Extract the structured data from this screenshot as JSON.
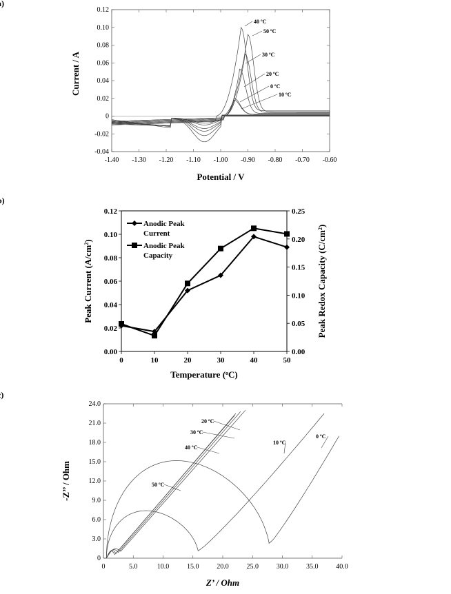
{
  "panels": {
    "a": "a)",
    "b": "b)",
    "c": "c)"
  },
  "chart_data": [
    {
      "type": "line",
      "panel": "a)",
      "xlabel": "Potential / V",
      "ylabel": "Current / A",
      "xlim": [
        -1.4,
        -0.6
      ],
      "ylim": [
        -0.04,
        0.12
      ],
      "xticks": [
        "-1.40",
        "-1.30",
        "-1.20",
        "-1.10",
        "-1.00",
        "-0.90",
        "-0.80",
        "-0.70",
        "-0.60"
      ],
      "yticks": [
        "-0.04",
        "-0.02",
        "0",
        "0.02",
        "0.04",
        "0.06",
        "0.08",
        "0.10",
        "0.12"
      ],
      "annotations": [
        "40 ºC",
        "50 ºC",
        "30 ºC",
        "20 ºC",
        "0 ºC",
        "10 ºC"
      ],
      "series": [
        {
          "label_index": 0,
          "peak_x": -0.925,
          "peak_y": 0.1,
          "cathodic_y": -0.027,
          "onset": -1.02,
          "tail": 0.006
        },
        {
          "label_index": 1,
          "peak_x": -0.9,
          "peak_y": 0.092,
          "cathodic_y": -0.02,
          "onset": -1.0,
          "tail": 0.005
        },
        {
          "label_index": 2,
          "peak_x": -0.91,
          "peak_y": 0.07,
          "cathodic_y": -0.015,
          "onset": -0.99,
          "tail": 0.004
        },
        {
          "label_index": 3,
          "peak_x": -0.93,
          "peak_y": 0.053,
          "cathodic_y": -0.012,
          "onset": -0.99,
          "tail": 0.003
        },
        {
          "label_index": 4,
          "peak_x": -0.95,
          "peak_y": 0.02,
          "cathodic_y": -0.008,
          "onset": -0.99,
          "tail": 0.002
        },
        {
          "label_index": 5,
          "peak_x": -0.95,
          "peak_y": 0.018,
          "cathodic_y": -0.006,
          "onset": -0.99,
          "tail": 0.002
        }
      ]
    },
    {
      "type": "line",
      "panel": "b)",
      "xlabel": "Temperature (",
      "xlabel_sup": "o",
      "xlabel_end": "C)",
      "ylabel": "Peak Current (A/cm",
      "ylabel_sup": "2",
      "ylabel_end": ")",
      "y2label": "Peak Redox Capacity (C/cm",
      "y2label_sup": "2",
      "y2label_end": ")",
      "xlim": [
        0,
        50
      ],
      "ylim": [
        0,
        0.12
      ],
      "y2lim": [
        0,
        0.25
      ],
      "xticks": [
        "0",
        "10",
        "20",
        "30",
        "40",
        "50"
      ],
      "yticks": [
        "0.00",
        "0.02",
        "0.04",
        "0.06",
        "0.08",
        "0.10",
        "0.12"
      ],
      "y2ticks": [
        "0.00",
        "0.05",
        "0.10",
        "0.15",
        "0.20",
        "0.25"
      ],
      "legend_position": "top-left",
      "x": [
        0,
        10,
        20,
        30,
        40,
        50
      ],
      "series": [
        {
          "name_line1": "Anodic Peak",
          "name_line2": "Current",
          "marker": "diamond",
          "axis": "left",
          "values": [
            0.022,
            0.017,
            0.052,
            0.065,
            0.098,
            0.089
          ]
        },
        {
          "name_line1": "Anodic Peak",
          "name_line2": "Capacity",
          "marker": "square",
          "axis": "right",
          "values": [
            0.049,
            0.028,
            0.121,
            0.183,
            0.219,
            0.209
          ]
        }
      ]
    },
    {
      "type": "line",
      "panel": "c)",
      "xlabel": "Z’ /  Ohm",
      "ylabel": "-Z’’ /  Ohm",
      "xlim": [
        0,
        40
      ],
      "ylim": [
        0,
        24
      ],
      "xticks": [
        "0",
        "5.0",
        "10.0",
        "15.0",
        "20.0",
        "25.0",
        "30.0",
        "35.0",
        "40.0"
      ],
      "yticks": [
        "0",
        "3.0",
        "6.0",
        "9.0",
        "12.0",
        "15.0",
        "18.0",
        "21.0",
        "24.0"
      ],
      "annotations": [
        "20 ºC",
        "30 ºC",
        "40 ºC",
        "50 ºC",
        "10 ºC",
        "0 ºC"
      ],
      "series": [
        {
          "label": "20 ºC",
          "line_start": [
            3.0,
            1.0
          ],
          "line_end": [
            23.8,
            23.0
          ]
        },
        {
          "label": "30 ºC",
          "line_start": [
            2.6,
            0.8
          ],
          "line_end": [
            23.0,
            22.8
          ]
        },
        {
          "label": "40 ºC",
          "line_start": [
            2.2,
            0.6
          ],
          "line_end": [
            22.2,
            22.5
          ]
        },
        {
          "label": "50 ºC",
          "line_start": [
            2.0,
            0.4
          ],
          "line_end": [
            22.0,
            22.2
          ]
        },
        {
          "label": "10 ºC",
          "semicircle_end": 16.0,
          "semicircle_top": 7.3,
          "line_end": [
            37.0,
            22.5
          ]
        },
        {
          "label": "0 ºC",
          "semicircle_end": 28.0,
          "semicircle_top": 15.0,
          "line_end": [
            39.5,
            19.0
          ]
        }
      ]
    }
  ]
}
